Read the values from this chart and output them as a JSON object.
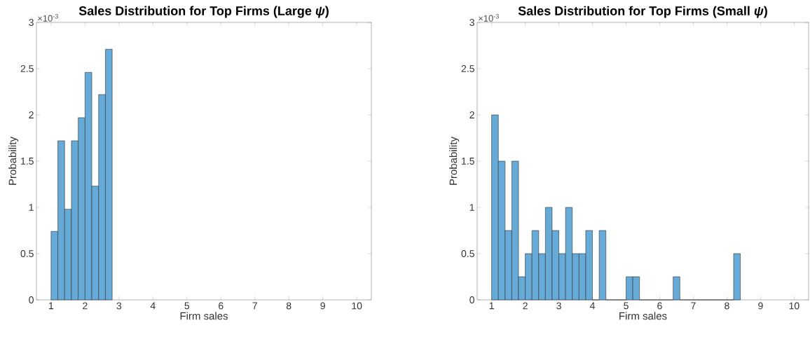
{
  "chart_data": [
    {
      "type": "histogram",
      "title": "Sales Distribution for Top Firms (Large *ψ*)",
      "xlabel": "Firm sales",
      "ylabel": "Probability",
      "annotations": [
        "×10$^{-3}$"
      ],
      "color": "#66aad7",
      "bins": [
        1.0,
        1.2,
        1.4,
        1.6,
        1.8,
        2.0,
        2.2,
        2.4,
        2.6,
        2.8
      ],
      "values": [
        0.74,
        1.72,
        0.98,
        1.72,
        1.97,
        2.46,
        1.23,
        2.22,
        2.71
      ],
      "xlim": [
        0.57,
        10.43
      ],
      "ylim": [
        0,
        3
      ],
      "xticks": [
        1,
        2,
        3,
        4,
        5,
        6,
        7,
        8,
        9,
        10
      ],
      "yticks": [
        0,
        0.5,
        1,
        1.5,
        2,
        2.5,
        3
      ]
    },
    {
      "type": "histogram",
      "title": "Sales Distribution for Top Firms (Small *ψ*)",
      "xlabel": "Firm sales",
      "ylabel": "Probability",
      "annotations": [
        "×10$^{-3}$"
      ],
      "color": "#66aad7",
      "bins": [
        1.0,
        1.2,
        1.4,
        1.6,
        1.8,
        2.0,
        2.2,
        2.4,
        2.6,
        2.8,
        3.0,
        3.2,
        3.4,
        3.6,
        3.8,
        4.0,
        4.2,
        4.4,
        4.6,
        4.8,
        5.0,
        5.2,
        5.4,
        5.6,
        5.8,
        6.0,
        6.2,
        6.4,
        6.6,
        6.8,
        7.0,
        7.2,
        7.4,
        7.6,
        7.8,
        8.0,
        8.2,
        8.4
      ],
      "values": [
        2,
        1.5,
        0.75,
        1.5,
        0.25,
        0.5,
        0.75,
        0.5,
        1,
        0.75,
        0.5,
        1,
        0.5,
        0.5,
        0.75,
        0,
        0.75,
        0,
        0,
        0,
        0.25,
        0.25,
        0,
        0,
        0,
        0,
        0,
        0.25,
        0,
        0,
        0,
        0,
        0,
        0,
        0,
        0,
        0.5
      ],
      "xlim": [
        0.57,
        10.43
      ],
      "ylim": [
        0,
        3
      ],
      "xticks": [
        1,
        2,
        3,
        4,
        5,
        6,
        7,
        8,
        9,
        10
      ],
      "yticks": [
        0,
        0.5,
        1,
        1.5,
        2,
        2.5,
        3
      ]
    }
  ]
}
